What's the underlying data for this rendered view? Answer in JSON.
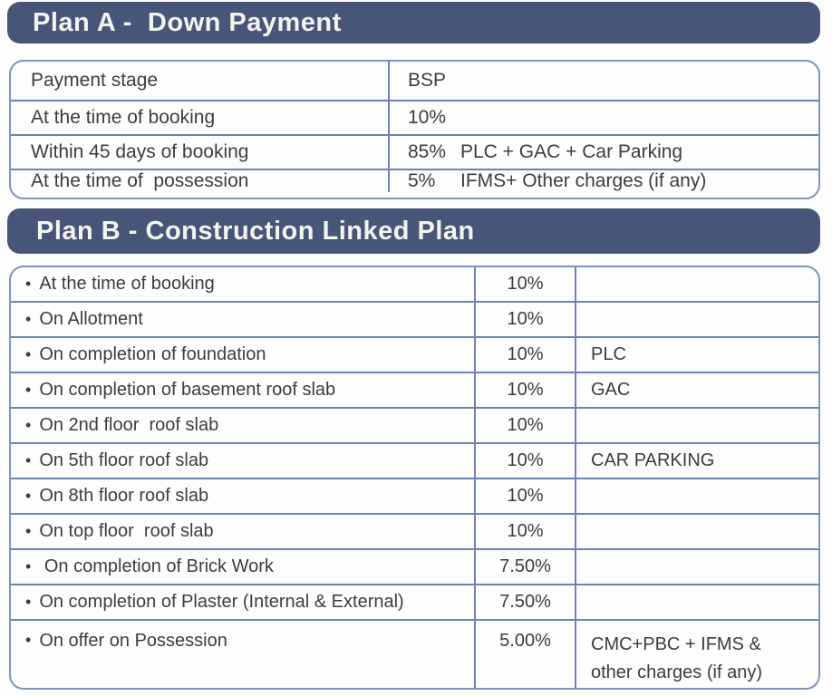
{
  "colors": {
    "banner_background": "#475678",
    "banner_text": "#f3f3f0",
    "table_outer_border": "#8191c1",
    "table_grid_line": "#6e82b4",
    "body_text": "#3d3c40",
    "page_background": "#fdfdfd"
  },
  "plan_a": {
    "title": "Plan A -  Down Payment",
    "columns": {
      "stage": "Payment stage",
      "value": "BSP"
    },
    "rows": [
      {
        "stage": "At the time of booking",
        "pct": "10%",
        "note": ""
      },
      {
        "stage": "Within 45 days of booking",
        "pct": "85%",
        "note": "PLC + GAC + Car Parking"
      },
      {
        "stage": "At the time of  possession",
        "pct": "5%",
        "note": "IFMS+ Other charges (if any)"
      }
    ]
  },
  "plan_b": {
    "title": "Plan B - Construction Linked Plan",
    "bullet": "•",
    "rows": [
      {
        "stage": "At the time of booking",
        "pct": "10%",
        "note": ""
      },
      {
        "stage": "On Allotment",
        "pct": "10%",
        "note": ""
      },
      {
        "stage": "On completion of foundation",
        "pct": "10%",
        "note": "PLC"
      },
      {
        "stage": "On completion of basement roof slab",
        "pct": "10%",
        "note": "GAC"
      },
      {
        "stage": "On 2nd floor  roof slab",
        "pct": "10%",
        "note": ""
      },
      {
        "stage": "On 5th floor roof slab",
        "pct": "10%",
        "note": "CAR PARKING"
      },
      {
        "stage": "On 8th floor roof slab",
        "pct": "10%",
        "note": ""
      },
      {
        "stage": "On top floor  roof slab",
        "pct": "10%",
        "note": ""
      },
      {
        "stage": " On completion of Brick Work",
        "pct": "7.50%",
        "note": ""
      },
      {
        "stage": "On completion of Plaster (Internal & External)",
        "pct": "7.50%",
        "note": ""
      },
      {
        "stage": "On offer on Possession",
        "pct": "5.00%",
        "note": "CMC+PBC + IFMS & other charges (if any)"
      }
    ]
  }
}
